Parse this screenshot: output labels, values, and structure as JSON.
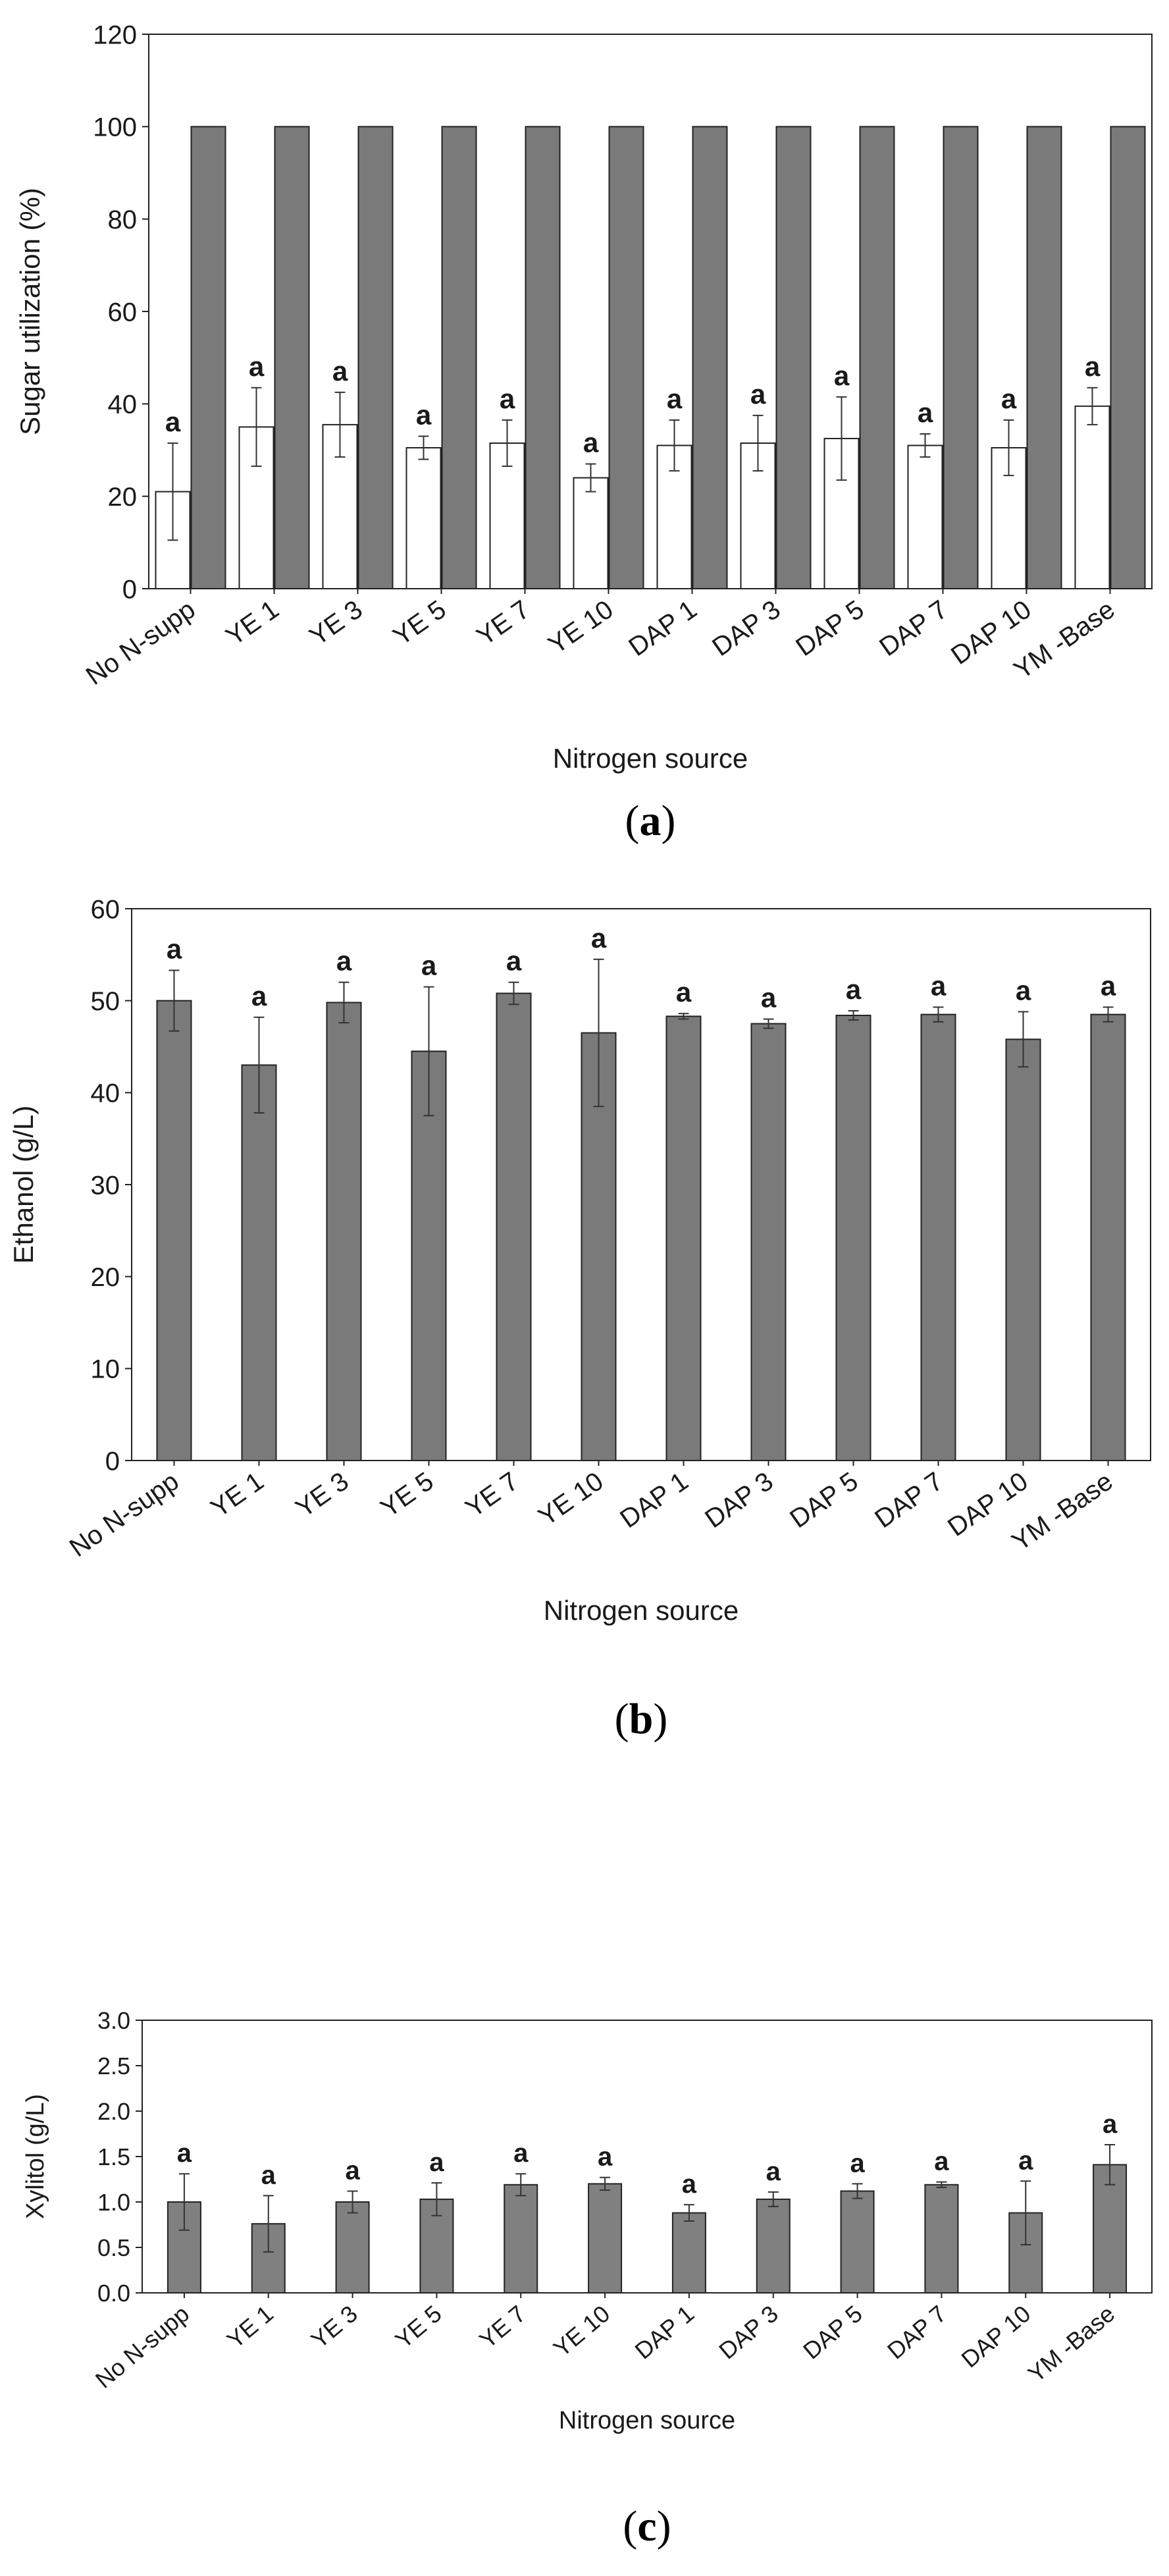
{
  "chart_data": [
    {
      "type": "bar",
      "panel_label": "a",
      "categories": [
        "No N-supp",
        "YE 1",
        "YE 3",
        "YE 5",
        "YE 7",
        "YE 10",
        "DAP 1",
        "DAP 3",
        "DAP 5",
        "DAP 7",
        "DAP 10",
        "YM -Base"
      ],
      "series": [
        {
          "values": [
            21,
            35,
            35.5,
            30.5,
            31.5,
            24,
            31,
            31.5,
            32.5,
            31,
            30.5,
            39.5
          ],
          "errors": [
            10.5,
            8.5,
            7,
            2.5,
            5,
            3,
            5.5,
            6,
            9,
            2.5,
            6,
            4
          ],
          "fill": "#ffffff"
        },
        {
          "values": [
            100,
            100,
            100,
            100,
            100,
            100,
            100,
            100,
            100,
            100,
            100,
            100
          ],
          "errors": [
            0,
            0,
            0,
            0,
            0,
            0,
            0,
            0,
            0,
            0,
            0,
            0
          ],
          "fill": "#7a7a7a"
        }
      ],
      "letters": [
        "a",
        "a",
        "a",
        "a",
        "a",
        "a",
        "a",
        "a",
        "a",
        "a",
        "a",
        "a"
      ],
      "title": "",
      "xlabel": "Nitrogen source",
      "ylabel": "Sugar utilization (%)",
      "ylim": [
        0,
        120
      ],
      "yticks": [
        "0",
        "20",
        "40",
        "60",
        "80",
        "100",
        "120"
      ],
      "grid": false,
      "legend": "none"
    },
    {
      "type": "bar",
      "panel_label": "b",
      "categories": [
        "No N-supp",
        "YE 1",
        "YE 3",
        "YE 5",
        "YE 7",
        "YE 10",
        "DAP 1",
        "DAP 3",
        "DAP 5",
        "DAP 7",
        "DAP 10",
        "YM -Base"
      ],
      "series": [
        {
          "values": [
            50,
            43,
            49.8,
            44.5,
            50.8,
            46.5,
            48.3,
            47.5,
            48.4,
            48.5,
            45.8,
            48.5
          ],
          "errors": [
            3.3,
            5.2,
            2.2,
            7,
            1.2,
            8,
            0.3,
            0.5,
            0.5,
            0.8,
            3,
            0.8
          ],
          "fill": "#7a7a7a"
        }
      ],
      "letters": [
        "a",
        "a",
        "a",
        "a",
        "a",
        "a",
        "a",
        "a",
        "a",
        "a",
        "a",
        "a"
      ],
      "title": "",
      "xlabel": "Nitrogen source",
      "ylabel": "Ethanol (g/L)",
      "ylim": [
        0,
        60
      ],
      "yticks": [
        "0",
        "10",
        "20",
        "30",
        "40",
        "50",
        "60"
      ],
      "grid": false,
      "legend": "none"
    },
    {
      "type": "bar",
      "panel_label": "c",
      "categories": [
        "No N-supp",
        "YE 1",
        "YE 3",
        "YE 5",
        "YE 7",
        "YE 10",
        "DAP 1",
        "DAP 3",
        "DAP 5",
        "DAP 7",
        "DAP 10",
        "YM -Base"
      ],
      "series": [
        {
          "values": [
            1.0,
            0.76,
            1.0,
            1.03,
            1.19,
            1.2,
            0.88,
            1.03,
            1.12,
            1.19,
            0.88,
            1.41
          ],
          "errors": [
            0.31,
            0.31,
            0.12,
            0.18,
            0.12,
            0.07,
            0.09,
            0.08,
            0.08,
            0.03,
            0.35,
            0.22
          ],
          "fill": "#808080"
        }
      ],
      "letters": [
        "a",
        "a",
        "a",
        "a",
        "a",
        "a",
        "a",
        "a",
        "a",
        "a",
        "a",
        "a"
      ],
      "title": "",
      "xlabel": "Nitrogen source",
      "ylabel": "Xylitol (g/L)",
      "ylim": [
        0,
        3.0
      ],
      "yticks": [
        "0.0",
        "0.5",
        "1.0",
        "1.5",
        "2.0",
        "2.5",
        "3.0"
      ],
      "grid": false,
      "legend": "none"
    }
  ]
}
